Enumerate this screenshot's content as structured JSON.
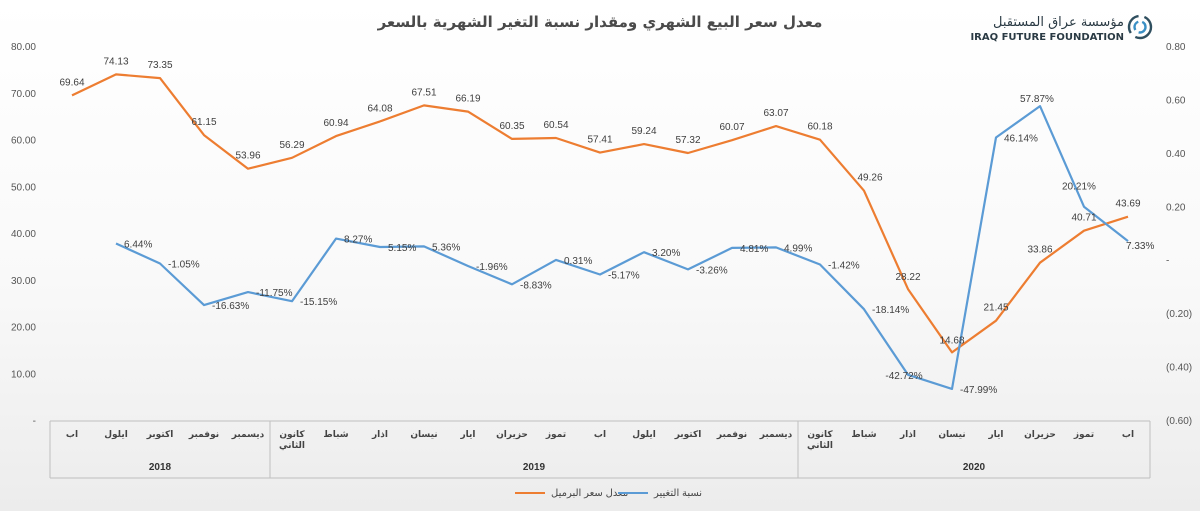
{
  "logo": {
    "name_ar": "مؤسسة عراق المستقبل",
    "name_en": "IRAQ FUTURE FOUNDATION"
  },
  "chart_data": {
    "type": "line",
    "title": "معدل سعر البيع الشهري ومقدار نسبة التغير الشهرية بالسعر",
    "categories": [
      "اب",
      "ايلول",
      "اكتوبر",
      "نوفمبر",
      "ديسمبر",
      "كانون الثاني",
      "شباط",
      "اذار",
      "نيسان",
      "ايار",
      "حزيران",
      "تموز",
      "اب",
      "ايلول",
      "اكتوبر",
      "نوفمبر",
      "ديسمبر",
      "كانون الثاني",
      "شباط",
      "اذار",
      "نيسان",
      "ايار",
      "حزيران",
      "تموز",
      "اب"
    ],
    "year_groups": [
      {
        "label": "2018",
        "start": 0,
        "end": 4
      },
      {
        "label": "2019",
        "start": 5,
        "end": 16
      },
      {
        "label": "2020",
        "start": 17,
        "end": 24
      }
    ],
    "y_left": {
      "ylim": [
        0,
        80
      ],
      "ticks": [
        "-",
        "10.00",
        "20.00",
        "30.00",
        "40.00",
        "50.00",
        "60.00",
        "70.00",
        "80.00"
      ]
    },
    "y_right": {
      "ylim": [
        -0.6,
        0.8
      ],
      "ticks": [
        "(0.60)",
        "(0.40)",
        "(0.20)",
        "-",
        "0.20",
        "0.40",
        "0.60",
        "0.80"
      ]
    },
    "series": [
      {
        "name": "معدل سعر البرميل",
        "axis": "left",
        "color": "#ED7D31",
        "values": [
          69.64,
          74.13,
          73.35,
          61.15,
          53.96,
          56.29,
          60.94,
          64.08,
          67.51,
          66.19,
          60.35,
          60.54,
          57.41,
          59.24,
          57.32,
          60.07,
          63.07,
          60.18,
          49.26,
          28.22,
          14.68,
          21.45,
          33.86,
          40.71,
          43.69
        ],
        "labels": [
          "69.64",
          "74.13",
          "73.35",
          "61.15",
          "53.96",
          "56.29",
          "60.94",
          "64.08",
          "67.51",
          "66.19",
          "60.35",
          "60.54",
          "57.41",
          "59.24",
          "57.32",
          "60.07",
          "63.07",
          "60.18",
          "49.26",
          "28.22",
          "14.68",
          "21.45",
          "33.86",
          "40.71",
          "43.69"
        ]
      },
      {
        "name": "نسبة التغيير",
        "axis": "right",
        "color": "#5B9BD5",
        "values": [
          null,
          0.0644,
          -0.0105,
          -0.1663,
          -0.1175,
          -0.1515,
          0.0827,
          0.0515,
          0.0536,
          -0.0196,
          -0.0883,
          0.0031,
          -0.0517,
          0.032,
          -0.0326,
          0.0481,
          0.0499,
          -0.0142,
          -0.1814,
          -0.4272,
          -0.4799,
          0.4614,
          0.5787,
          0.2021,
          0.0733
        ],
        "labels": [
          null,
          "6.44%",
          "-1.05%",
          "-16.63%",
          "-11.75%",
          "-15.15%",
          "8.27%",
          "5.15%",
          "5.36%",
          "-1.96%",
          "-8.83%",
          "0.31%",
          "-5.17%",
          "3.20%",
          "-3.26%",
          "4.81%",
          "4.99%",
          "-1.42%",
          "-18.14%",
          "-42.72%",
          "-47.99%",
          "46.14%",
          "57.87%",
          "20.21%",
          "7.33%"
        ]
      }
    ],
    "legend_position": "bottom-center",
    "grid": false
  }
}
